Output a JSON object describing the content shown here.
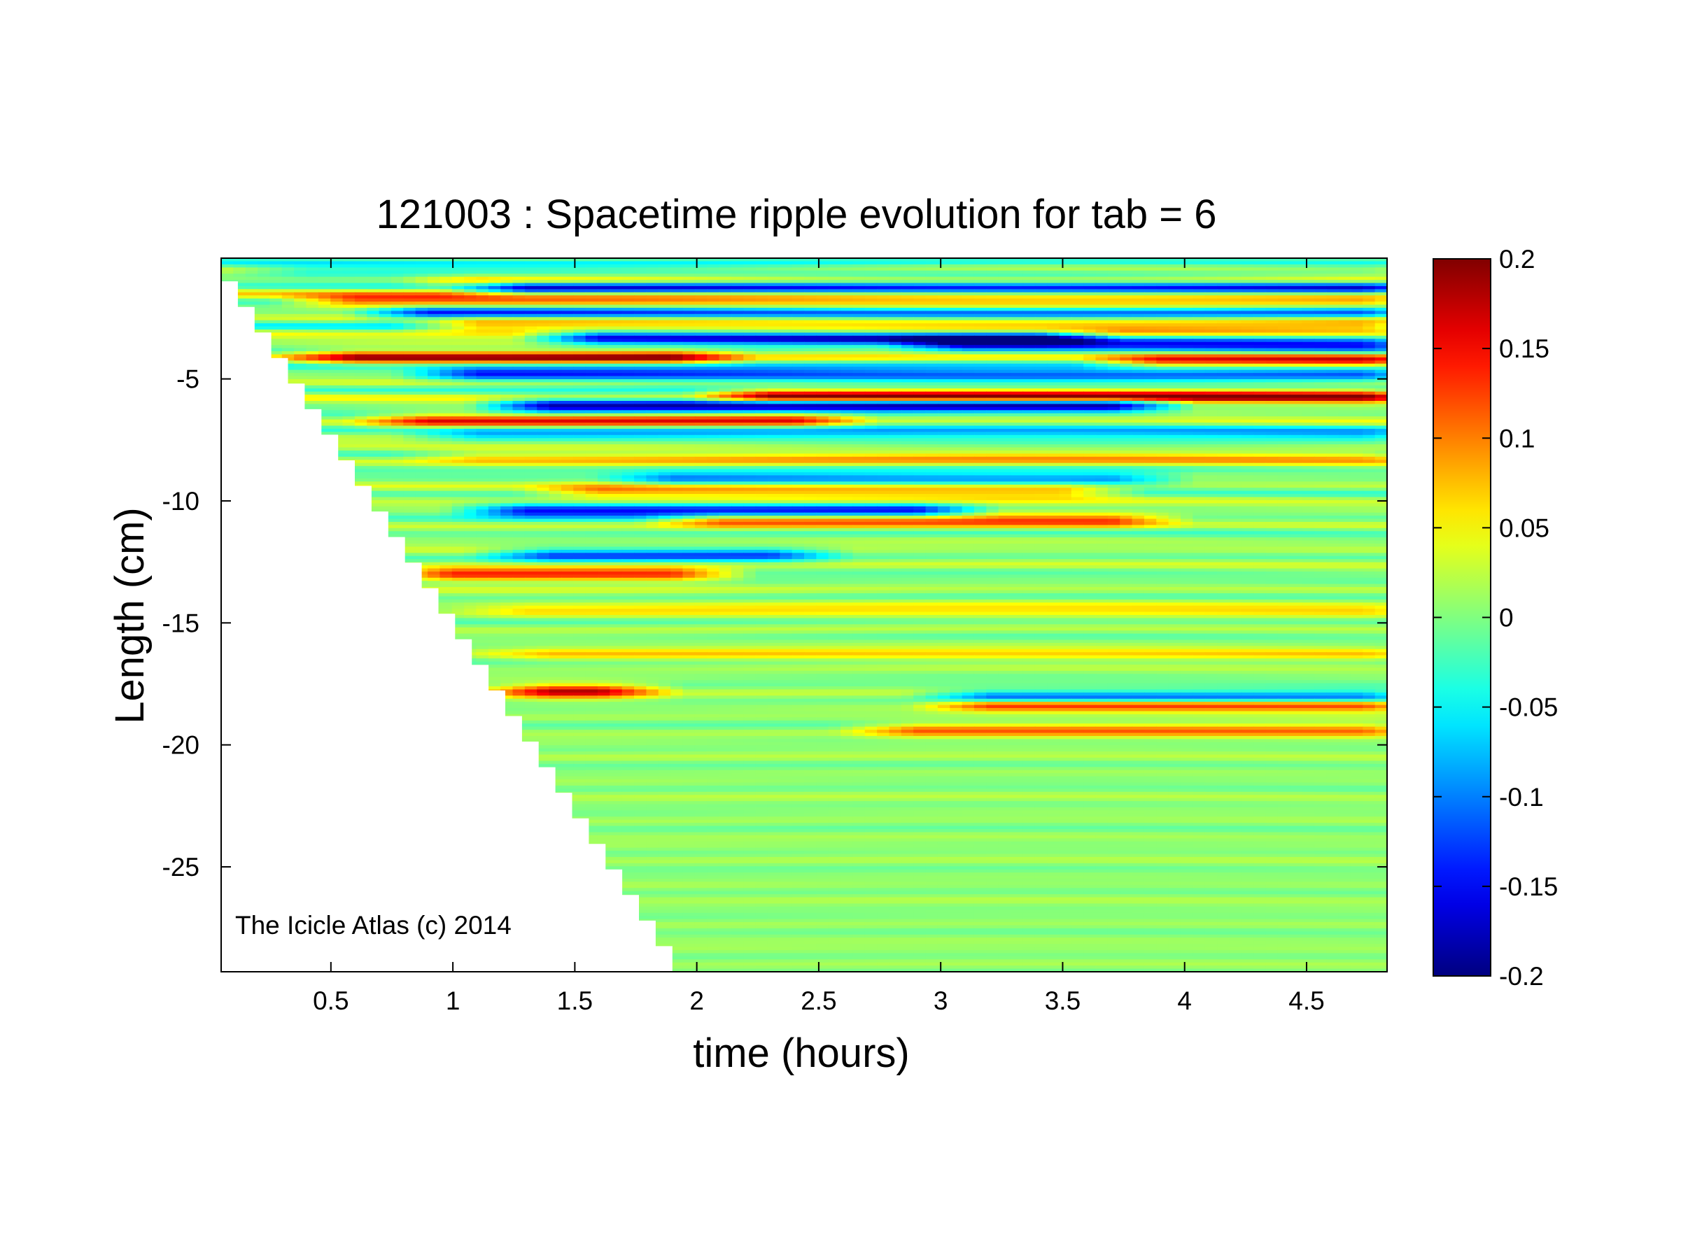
{
  "chart_data": {
    "type": "heatmap",
    "title": "121003 : Spacetime ripple evolution for tab = 6",
    "xlabel": "time (hours)",
    "ylabel": "Length (cm)",
    "xlim": [
      0.05,
      4.83
    ],
    "ylim": [
      -29.3,
      -0.05
    ],
    "xticks": [
      0.5,
      1,
      1.5,
      2,
      2.5,
      3,
      3.5,
      4,
      4.5
    ],
    "xtick_labels": [
      "0.5",
      "1",
      "1.5",
      "2",
      "2.5",
      "3",
      "3.5",
      "4",
      "4.5"
    ],
    "yticks": [
      -5,
      -10,
      -15,
      -20,
      -25
    ],
    "ytick_labels": [
      "-5",
      "-10",
      "-15",
      "-20",
      "-25"
    ],
    "colorbar": {
      "colormap": "jet",
      "clim": [
        -0.2,
        0.2
      ],
      "ticks": [
        0.2,
        0.15,
        0.1,
        0.05,
        0,
        -0.05,
        -0.1,
        -0.15,
        -0.2
      ],
      "tick_labels": [
        "0.2",
        "0.15",
        "0.1",
        "0.05",
        "0",
        "-0.05",
        "-0.1",
        "-0.15",
        "-0.2"
      ]
    },
    "grid": false,
    "annotation": "The Icicle Atlas (c) 2014",
    "length_boundary": {
      "description_time_hours": [
        0.05,
        4.83
      ],
      "t_start": 0.05,
      "y_start": -1.0,
      "t_end": 1.9,
      "y_end": -29.3,
      "steps": 28
    },
    "features": [
      {
        "y": -0.6,
        "t_from": 0.3,
        "t_to": 4.83,
        "amp": -0.05
      },
      {
        "y": -1.0,
        "t_from": 1.0,
        "t_to": 4.83,
        "amp": 0.08
      },
      {
        "y": -1.3,
        "t_from": 1.2,
        "t_to": 4.83,
        "amp": -0.17
      },
      {
        "y": -1.8,
        "t_from": 0.5,
        "t_to": 4.83,
        "amp": 0.12
      },
      {
        "y": -2.3,
        "t_from": 0.8,
        "t_to": 4.83,
        "amp": -0.15
      },
      {
        "y": -2.8,
        "t_from": 1.0,
        "t_to": 4.83,
        "amp": 0.13
      },
      {
        "y": -3.3,
        "t_from": 1.5,
        "t_to": 3.5,
        "amp": -0.19
      },
      {
        "y": -3.6,
        "t_from": 3.0,
        "t_to": 4.83,
        "amp": -0.14
      },
      {
        "y": -4.1,
        "t_from": 0.5,
        "t_to": 2.0,
        "amp": 0.14
      },
      {
        "y": -4.3,
        "t_from": 3.8,
        "t_to": 4.83,
        "amp": 0.13
      },
      {
        "y": -4.8,
        "t_from": 1.0,
        "t_to": 4.83,
        "amp": -0.14
      },
      {
        "y": -5.7,
        "t_from": 2.2,
        "t_to": 4.83,
        "amp": 0.17
      },
      {
        "y": -6.1,
        "t_from": 1.3,
        "t_to": 3.8,
        "amp": -0.19
      },
      {
        "y": -6.7,
        "t_from": 0.8,
        "t_to": 2.5,
        "amp": 0.13
      },
      {
        "y": -7.3,
        "t_from": 1.0,
        "t_to": 4.83,
        "amp": -0.08
      },
      {
        "y": -8.2,
        "t_from": 1.0,
        "t_to": 4.83,
        "amp": 0.06
      },
      {
        "y": -9.1,
        "t_from": 1.8,
        "t_to": 3.8,
        "amp": -0.1
      },
      {
        "y": -9.6,
        "t_from": 1.5,
        "t_to": 3.6,
        "amp": 0.1
      },
      {
        "y": -10.4,
        "t_from": 1.2,
        "t_to": 3.0,
        "amp": -0.16
      },
      {
        "y": -10.8,
        "t_from": 2.0,
        "t_to": 3.8,
        "amp": 0.12
      },
      {
        "y": -12.2,
        "t_from": 1.3,
        "t_to": 2.4,
        "amp": -0.12
      },
      {
        "y": -13.0,
        "t_from": 0.9,
        "t_to": 2.0,
        "amp": 0.14
      },
      {
        "y": -14.5,
        "t_from": 1.2,
        "t_to": 4.83,
        "amp": 0.05
      },
      {
        "y": -16.3,
        "t_from": 1.3,
        "t_to": 4.83,
        "amp": 0.05
      },
      {
        "y": -17.8,
        "t_from": 1.3,
        "t_to": 1.7,
        "amp": 0.16
      },
      {
        "y": -18.1,
        "t_from": 3.1,
        "t_to": 4.83,
        "amp": -0.2
      },
      {
        "y": -18.3,
        "t_from": 3.1,
        "t_to": 4.83,
        "amp": 0.2
      },
      {
        "y": -19.4,
        "t_from": 2.8,
        "t_to": 4.83,
        "amp": 0.1
      }
    ]
  }
}
